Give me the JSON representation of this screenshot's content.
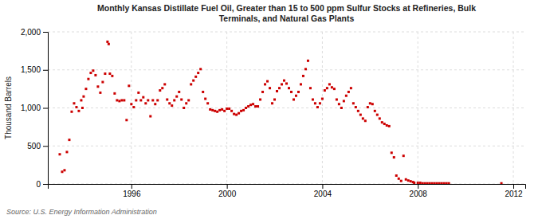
{
  "chart_data": {
    "type": "scatter",
    "title": "Monthly Kansas Distillate Fuel Oil, Greater than 15 to 500 ppm Sulfur Stocks at Refineries, Bulk\nTerminals, and Natural Gas Plants",
    "ylabel": "Thousand Barrels",
    "source": "Source: U.S. Energy Information Administration",
    "color": "#cc0000",
    "marker": "square",
    "grid": true,
    "xlim": [
      1992.5,
      2012.5
    ],
    "ylim": [
      0,
      2000
    ],
    "xticks": [
      1996,
      2000,
      2004,
      2008,
      2012
    ],
    "yticks": [
      0,
      500,
      {
        "value": 1000,
        "label": "1,000"
      },
      {
        "value": 1500,
        "label": "1,500"
      },
      {
        "value": 2000,
        "label": "2,000"
      }
    ],
    "x": [
      1993.0,
      1993.1,
      1993.2,
      1993.3,
      1993.4,
      1993.5,
      1993.6,
      1993.7,
      1993.8,
      1993.9,
      1993.95,
      1994.0,
      1994.1,
      1994.2,
      1994.3,
      1994.4,
      1994.5,
      1994.6,
      1994.7,
      1994.8,
      1994.9,
      1995.0,
      1995.05,
      1995.1,
      1995.2,
      1995.3,
      1995.4,
      1995.5,
      1995.6,
      1995.7,
      1995.8,
      1995.9,
      1996.0,
      1996.1,
      1996.2,
      1996.3,
      1996.4,
      1996.5,
      1996.6,
      1996.7,
      1996.8,
      1996.9,
      1997.0,
      1997.1,
      1997.2,
      1997.3,
      1997.4,
      1997.5,
      1997.6,
      1997.7,
      1997.8,
      1997.9,
      1998.0,
      1998.1,
      1998.2,
      1998.3,
      1998.4,
      1998.5,
      1998.6,
      1998.7,
      1998.8,
      1998.9,
      1999.0,
      1999.1,
      1999.2,
      1999.3,
      1999.4,
      1999.5,
      1999.6,
      1999.7,
      1999.8,
      1999.9,
      2000.0,
      2000.1,
      2000.2,
      2000.3,
      2000.4,
      2000.5,
      2000.6,
      2000.7,
      2000.8,
      2000.9,
      2001.0,
      2001.1,
      2001.2,
      2001.3,
      2001.4,
      2001.5,
      2001.6,
      2001.7,
      2001.8,
      2001.9,
      2002.0,
      2002.1,
      2002.2,
      2002.3,
      2002.4,
      2002.5,
      2002.6,
      2002.7,
      2002.8,
      2002.9,
      2003.0,
      2003.1,
      2003.2,
      2003.3,
      2003.4,
      2003.5,
      2003.6,
      2003.7,
      2003.8,
      2003.9,
      2004.0,
      2004.1,
      2004.2,
      2004.3,
      2004.4,
      2004.5,
      2004.6,
      2004.7,
      2004.8,
      2004.9,
      2005.0,
      2005.1,
      2005.2,
      2005.3,
      2005.4,
      2005.5,
      2005.6,
      2005.7,
      2005.8,
      2005.9,
      2006.0,
      2006.1,
      2006.2,
      2006.3,
      2006.4,
      2006.5,
      2006.6,
      2006.7,
      2006.8,
      2006.9,
      2007.0,
      2007.1,
      2007.2,
      2007.3,
      2007.4,
      2007.5,
      2007.6,
      2007.7,
      2007.8,
      2007.85,
      2008.0,
      2008.1,
      2008.2,
      2008.3,
      2008.4,
      2008.5,
      2008.6,
      2008.7,
      2008.8,
      2008.9,
      2009.0,
      2009.1,
      2009.2,
      2009.3,
      2011.5
    ],
    "y": [
      390,
      160,
      180,
      420,
      580,
      950,
      1060,
      1010,
      960,
      1100,
      1000,
      1150,
      1250,
      1380,
      1460,
      1490,
      1430,
      1280,
      1200,
      1340,
      1450,
      1870,
      1840,
      1450,
      1420,
      1190,
      1100,
      1090,
      1100,
      1100,
      840,
      1290,
      1050,
      1010,
      1100,
      1200,
      1100,
      1140,
      1060,
      1100,
      890,
      1100,
      1050,
      1100,
      1230,
      1260,
      1310,
      1110,
      1060,
      1030,
      1100,
      1150,
      1210,
      1110,
      1000,
      1060,
      1100,
      1310,
      1360,
      1410,
      1460,
      1510,
      1210,
      1120,
      1060,
      980,
      970,
      960,
      950,
      970,
      980,
      960,
      990,
      990,
      960,
      920,
      910,
      930,
      960,
      970,
      1000,
      1020,
      1040,
      1050,
      1020,
      1020,
      1110,
      1210,
      1310,
      1350,
      1260,
      1060,
      1110,
      1220,
      1260,
      1310,
      1360,
      1320,
      1260,
      1210,
      1110,
      1160,
      1210,
      1310,
      1420,
      1510,
      1620,
      1260,
      1110,
      1060,
      1010,
      1060,
      1120,
      1230,
      1260,
      1310,
      1270,
      1250,
      1110,
      1050,
      1000,
      1090,
      1160,
      1210,
      1260,
      1060,
      1010,
      960,
      910,
      860,
      830,
      1010,
      1060,
      1050,
      960,
      910,
      860,
      810,
      790,
      770,
      760,
      410,
      350,
      110,
      70,
      40,
      370,
      60,
      45,
      35,
      25,
      15,
      15,
      15,
      8,
      8,
      8,
      8,
      8,
      8,
      8,
      8,
      8,
      8,
      8,
      8,
      8
    ]
  }
}
